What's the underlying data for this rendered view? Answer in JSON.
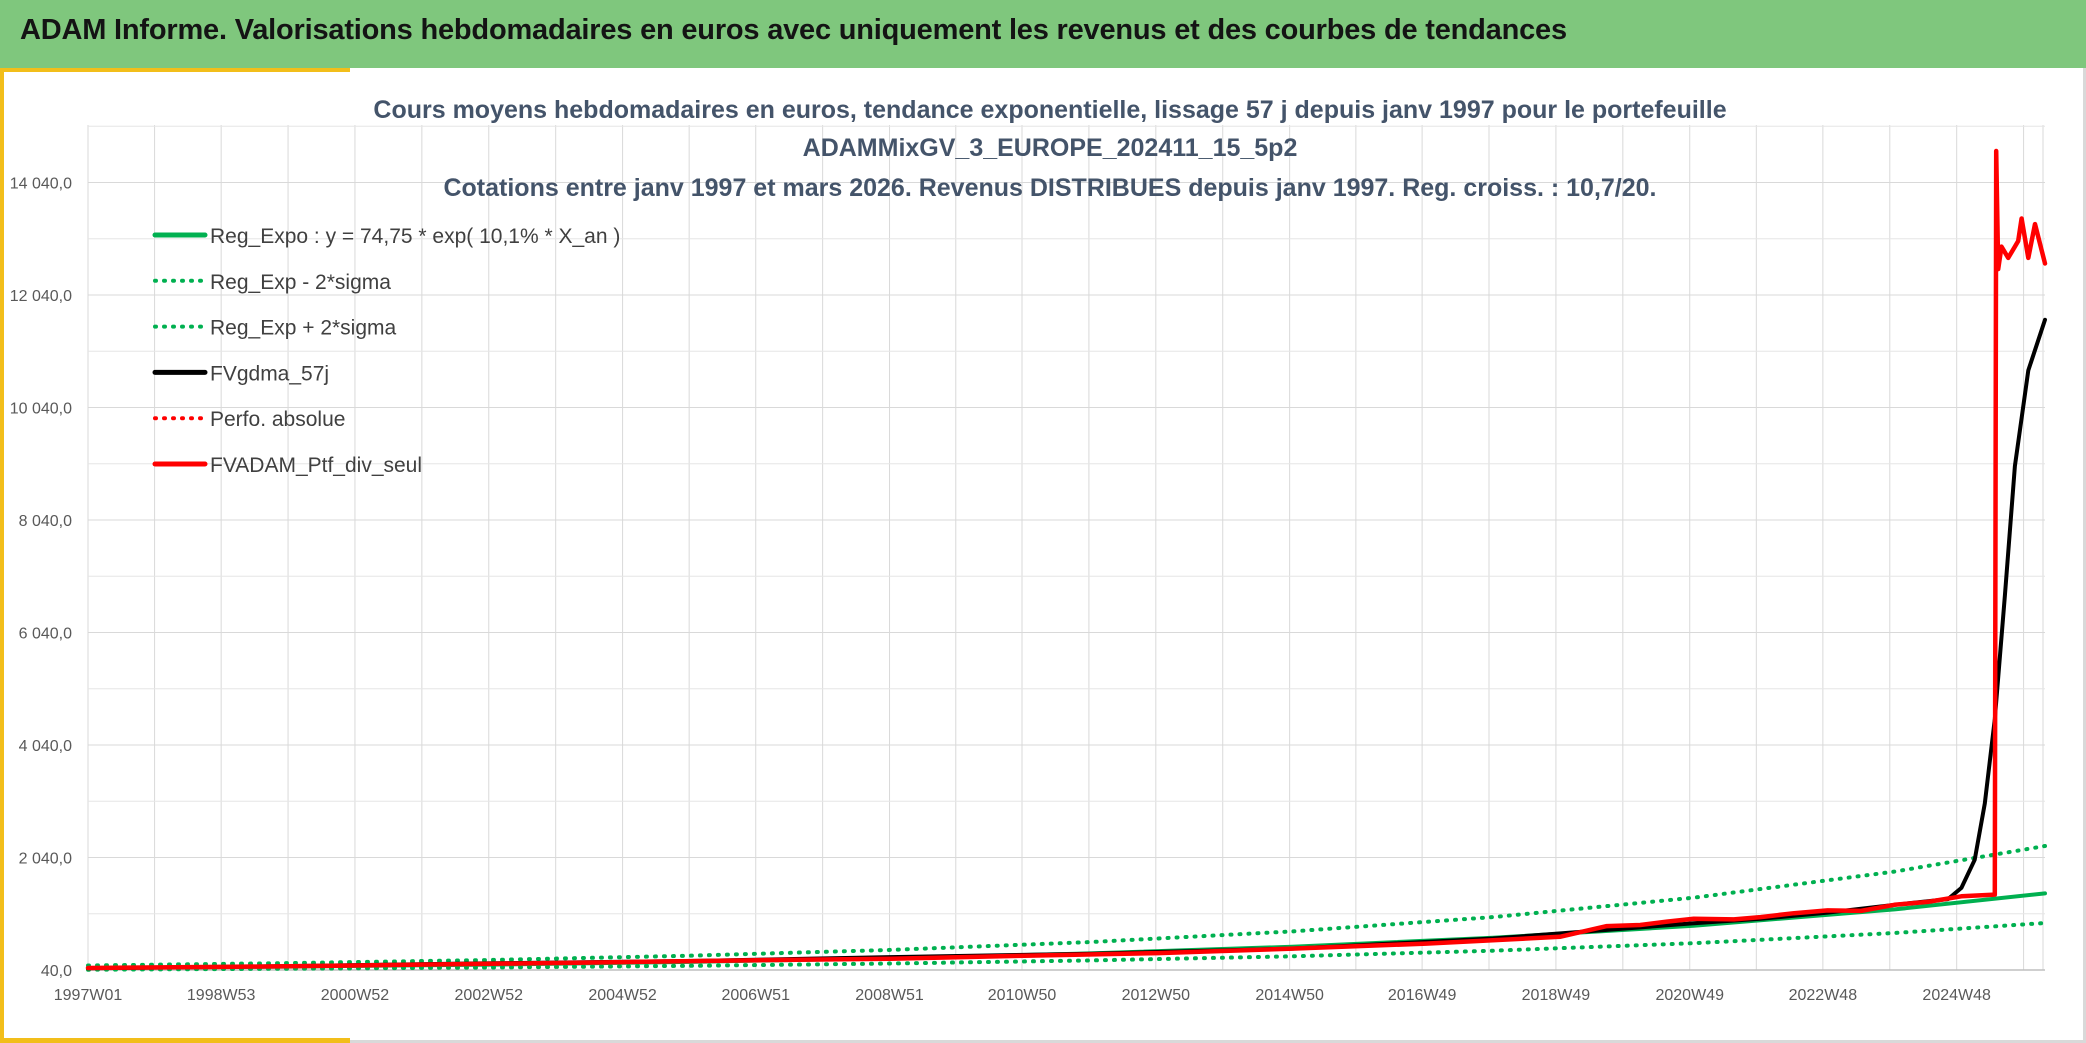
{
  "header": {
    "title": "ADAM Informe. Valorisations hebdomadaires en euros avec uniquement les revenus et des courbes de tendances",
    "background": "#7fc77d"
  },
  "chart_data": {
    "type": "line",
    "title_lines": [
      "Cours moyens hebdomadaires en euros, tendance exponentielle, lissage 57 j depuis janv 1997 pour le portefeuille",
      "ADAMMixGV_3_EUROPE_202411_15_5p2",
      "Cotations entre janv 1997 et mars 2026. Revenus DISTRIBUES depuis janv 1997. Reg. croiss. : 10,7/20."
    ],
    "xlabel": "",
    "ylabel": "",
    "x_range": [
      1997.0,
      2026.25
    ],
    "ylim": [
      40,
      15000
    ],
    "y_ticks": [
      40,
      2040,
      4040,
      6040,
      8040,
      10040,
      12040,
      14040
    ],
    "y_tick_labels": [
      "40,0",
      "2 040,0",
      "4 040,0",
      "6 040,0",
      "8 040,0",
      "10 040,0",
      "12 040,0",
      "14 040,0"
    ],
    "x_ticks": [
      1997.0,
      1998.99,
      2000.99,
      2002.99,
      2004.99,
      2006.98,
      2008.98,
      2010.96,
      2012.96,
      2014.96,
      2016.94,
      2018.94,
      2020.94,
      2022.93,
      2024.93
    ],
    "x_tick_labels": [
      "1997W01",
      "1998W53",
      "2000W52",
      "2002W52",
      "2004W52",
      "2006W51",
      "2008W51",
      "2010W50",
      "2012W50",
      "2014W50",
      "2016W49",
      "2018W49",
      "2020W49",
      "2022W48",
      "2024W48"
    ],
    "grid": true,
    "legend_position": "top-left",
    "series": [
      {
        "name": "Reg_Expo : y = 74,75 * exp( 10,1% *  X_an )",
        "color": "#00b050",
        "style": "solid",
        "x": [
          1997,
          2000,
          2003,
          2006,
          2009,
          2012,
          2015,
          2018,
          2021,
          2024,
          2026.25
        ],
        "y": [
          75,
          101,
          136,
          184,
          249,
          336,
          454,
          613,
          828,
          1118,
          1401
        ]
      },
      {
        "name": "Reg_Exp - 2*sigma",
        "color": "#00b050",
        "style": "dotted",
        "x": [
          1997,
          2000,
          2003,
          2006,
          2009,
          2012,
          2015,
          2018,
          2021,
          2024,
          2026.25
        ],
        "y": [
          46,
          63,
          85,
          115,
          155,
          210,
          283,
          383,
          517,
          698,
          875
        ]
      },
      {
        "name": "Reg_Exp + 2*sigma",
        "color": "#00b050",
        "style": "dotted",
        "x": [
          1997,
          2000,
          2003,
          2006,
          2009,
          2012,
          2015,
          2018,
          2021,
          2024,
          2026.25
        ],
        "y": [
          120,
          162,
          218,
          295,
          398,
          538,
          727,
          981,
          1325,
          1790,
          2244
        ]
      },
      {
        "name": "FVgdma_57j",
        "color": "#000000",
        "style": "solid",
        "x": [
          1997,
          2000,
          2003,
          2006,
          2009,
          2012,
          2015,
          2018,
          2020,
          2021,
          2022,
          2023,
          2024,
          2024.8,
          2025.0,
          2025.2,
          2025.35,
          2025.5,
          2025.65,
          2025.8,
          2026.0,
          2026.25
        ],
        "y": [
          70,
          110,
          160,
          200,
          270,
          330,
          420,
          600,
          780,
          870,
          950,
          1060,
          1200,
          1300,
          1500,
          2000,
          3000,
          4500,
          6700,
          9000,
          10700,
          11600
        ]
      },
      {
        "name": "Perfo. absolue",
        "color": "#ff0000",
        "style": "dotted",
        "x": [],
        "y": []
      },
      {
        "name": "FVADAM_Ptf_div_seul",
        "color": "#ff0000",
        "style": "solid",
        "x": [
          1997,
          1999,
          2001,
          2003,
          2005,
          2007,
          2009,
          2011,
          2013,
          2015,
          2017,
          2019,
          2019.7,
          2020.2,
          2020.6,
          2021,
          2021.6,
          2022,
          2022.5,
          2023,
          2023.5,
          2024,
          2024.5,
          2025.0,
          2025.5,
          2025.52,
          2025.55,
          2025.6,
          2025.7,
          2025.8,
          2025.85,
          2025.9,
          2026.0,
          2026.1,
          2026.25
        ],
        "y": [
          75,
          95,
          120,
          150,
          180,
          215,
          240,
          295,
          340,
          420,
          510,
          630,
          820,
          840,
          900,
          950,
          940,
          980,
          1050,
          1100,
          1090,
          1200,
          1250,
          1350,
          1380,
          14600,
          12500,
          12900,
          12700,
          12900,
          13000,
          13400,
          12700,
          13300,
          12600
        ]
      }
    ]
  }
}
